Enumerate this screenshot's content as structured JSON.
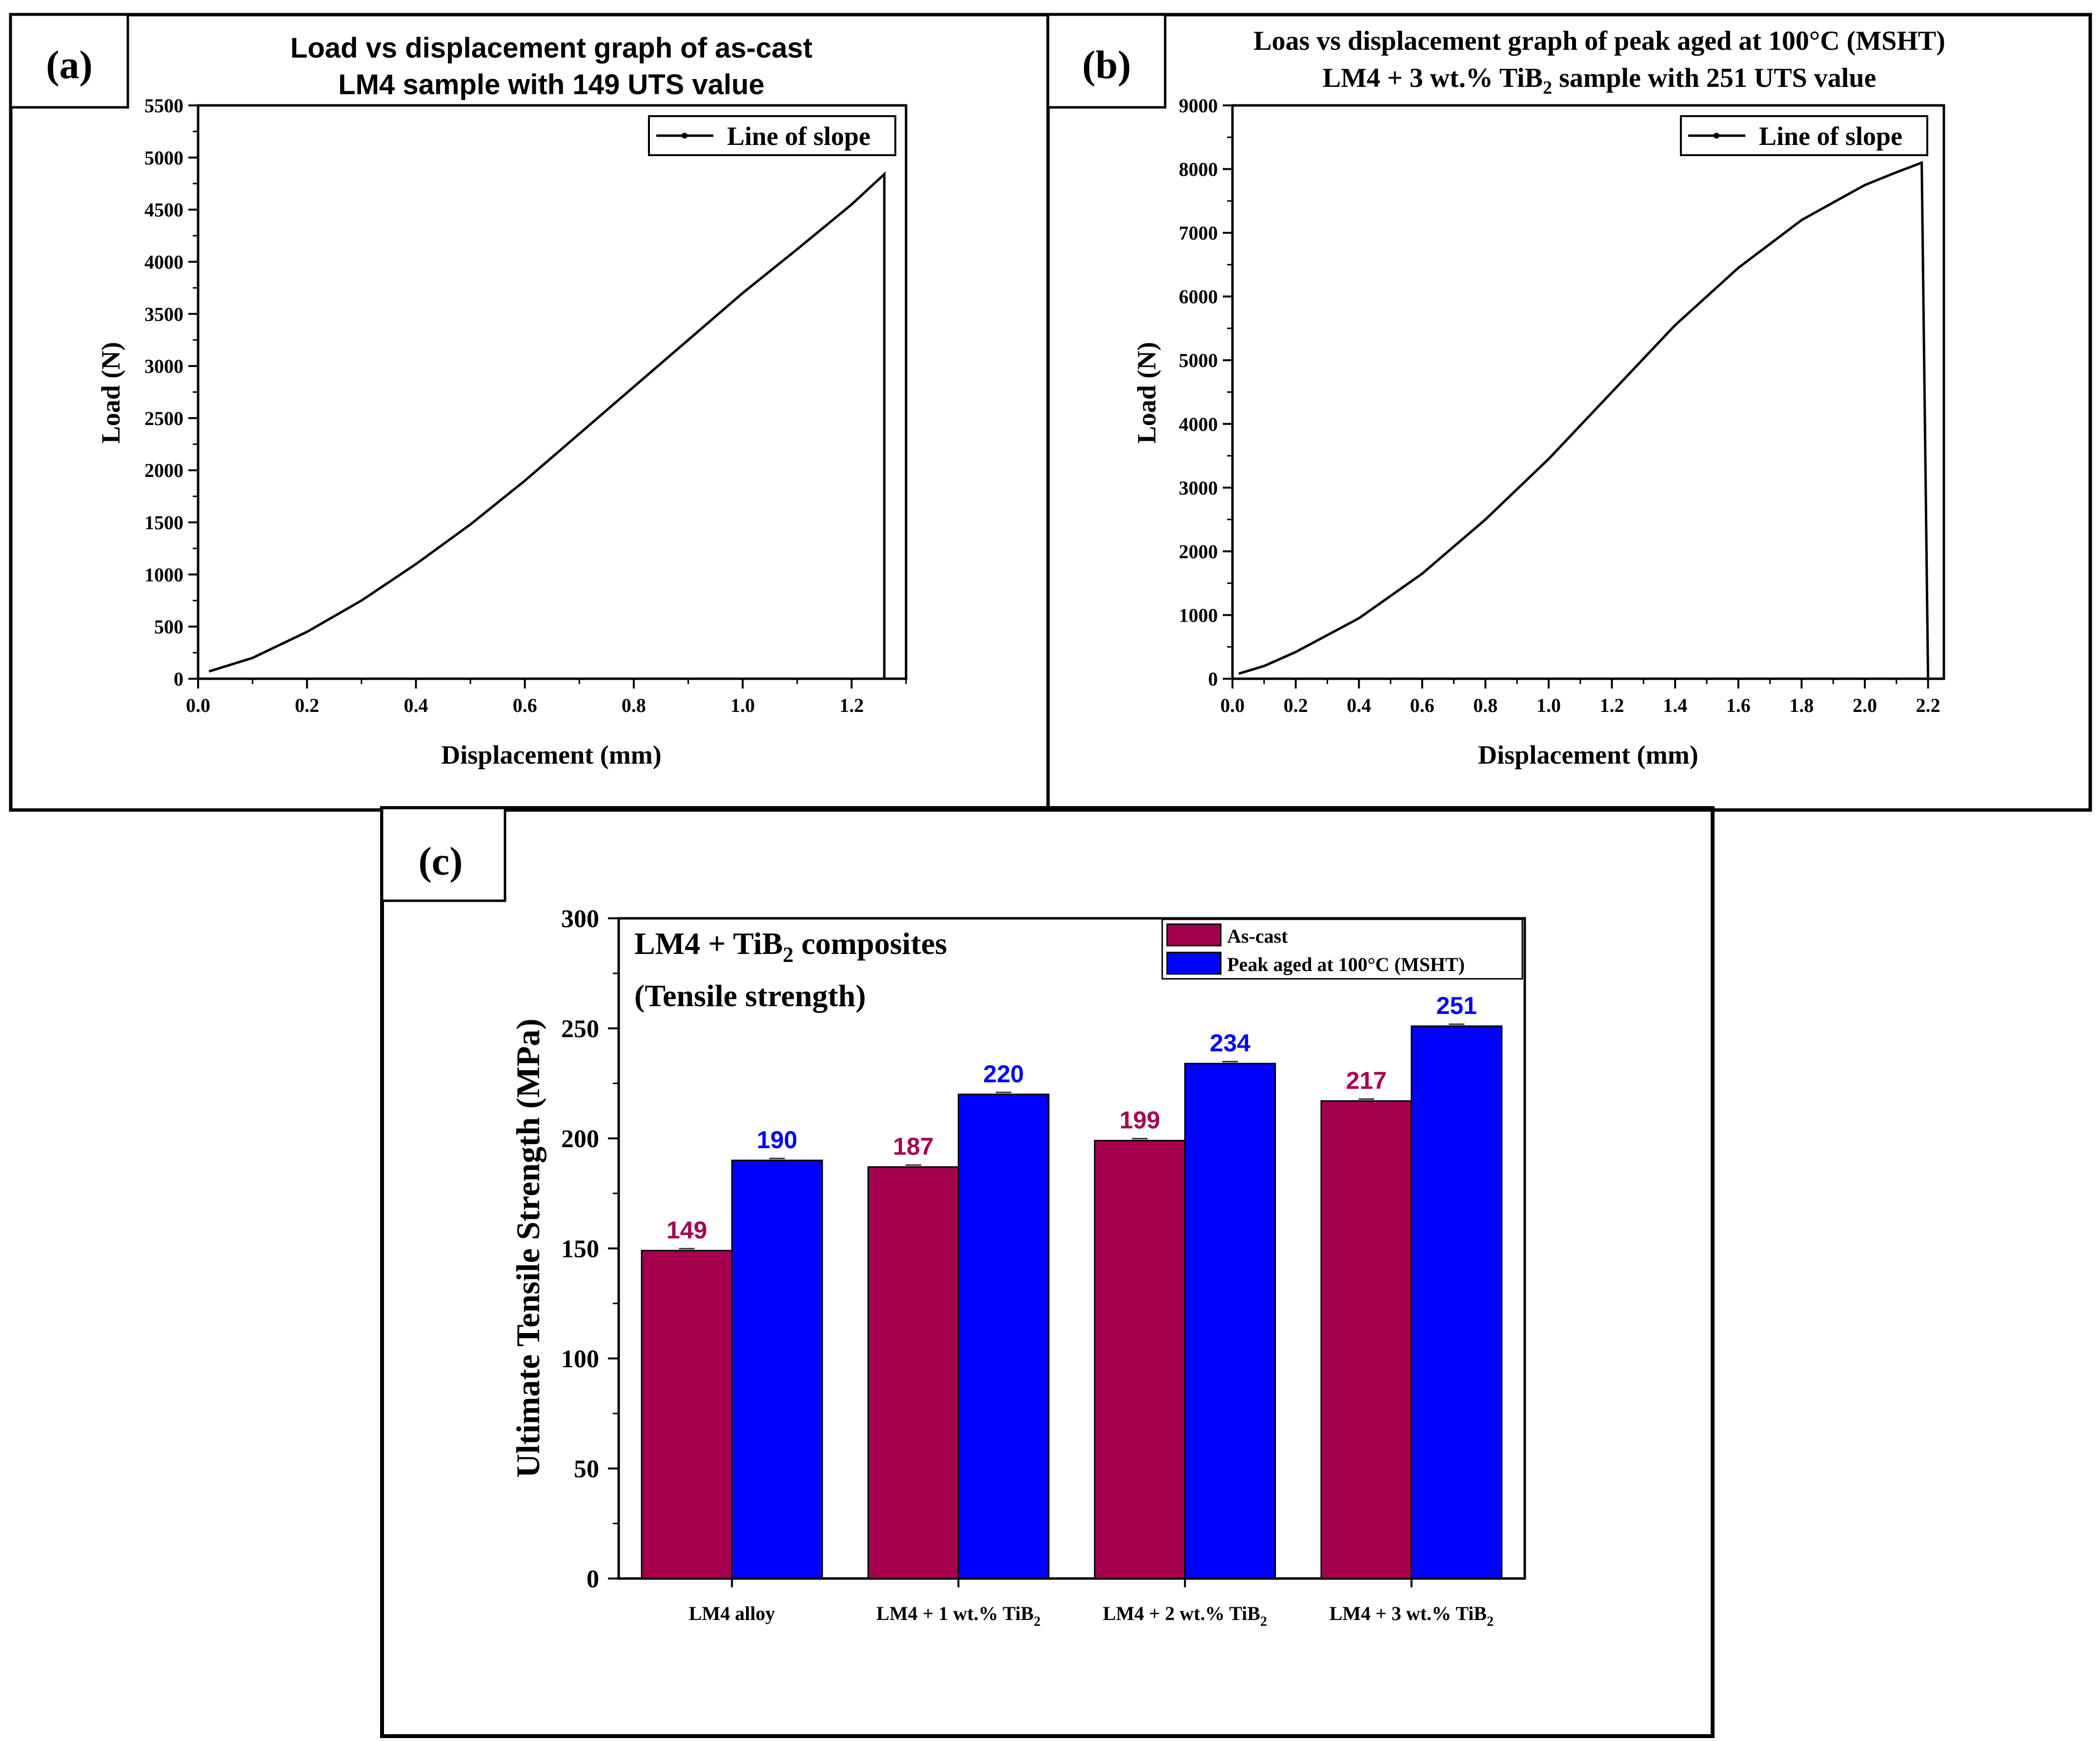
{
  "colors": {
    "as_cast": "#A50050",
    "peak_aged": "#0000FF",
    "line": "#000000"
  },
  "chart_data": [
    {
      "panel": "(a)",
      "type": "line",
      "title_lines": [
        "Load vs displacement graph of as-cast",
        "LM4 sample with 149 UTS value"
      ],
      "xlabel": "Displacement (mm)",
      "ylabel": "Load (N)",
      "xlim": [
        0,
        1.3
      ],
      "ylim": [
        0,
        5500
      ],
      "xticks": [
        0.0,
        0.2,
        0.4,
        0.6,
        0.8,
        1.0,
        1.2
      ],
      "xtick_labels": [
        "0.0",
        "0.2",
        "0.4",
        "0.6",
        "0.8",
        "1.0",
        "1.2"
      ],
      "yticks": [
        0,
        500,
        1000,
        1500,
        2000,
        2500,
        3000,
        3500,
        4000,
        4500,
        5000,
        5500
      ],
      "ytick_labels": [
        "0",
        "500",
        "1000",
        "1500",
        "2000",
        "2500",
        "3000",
        "3500",
        "4000",
        "4500",
        "5000",
        "5500"
      ],
      "legend": [
        "Line of slope"
      ],
      "series": [
        {
          "name": "Line of slope",
          "x": [
            0.02,
            0.1,
            0.2,
            0.3,
            0.4,
            0.5,
            0.6,
            0.7,
            0.8,
            0.9,
            1.0,
            1.1,
            1.2,
            1.26,
            1.26
          ],
          "y": [
            70,
            200,
            450,
            750,
            1100,
            1480,
            1900,
            2350,
            2800,
            3250,
            3700,
            4120,
            4550,
            4840,
            0
          ]
        }
      ]
    },
    {
      "panel": "(b)",
      "type": "line",
      "title_lines": [
        "Loas vs displacement graph of peak aged at 100°C (MSHT)",
        "LM4 + 3 wt.% TiB",
        "2",
        " sample with 251 UTS value"
      ],
      "xlabel": "Displacement (mm)",
      "ylabel": "Load (N)",
      "xlim": [
        0,
        2.25
      ],
      "ylim": [
        0,
        9000
      ],
      "xticks": [
        0.0,
        0.2,
        0.4,
        0.6,
        0.8,
        1.0,
        1.2,
        1.4,
        1.6,
        1.8,
        2.0,
        2.2
      ],
      "xtick_labels": [
        "0.0",
        "0.2",
        "0.4",
        "0.6",
        "0.8",
        "1.0",
        "1.2",
        "1.4",
        "1.6",
        "1.8",
        "2.0",
        "2.2"
      ],
      "yticks": [
        0,
        1000,
        2000,
        3000,
        4000,
        5000,
        6000,
        7000,
        8000,
        9000
      ],
      "ytick_labels": [
        "0",
        "1000",
        "2000",
        "3000",
        "4000",
        "5000",
        "6000",
        "7000",
        "8000",
        "9000"
      ],
      "legend": [
        "Line of slope"
      ],
      "series": [
        {
          "name": "Line of slope",
          "x": [
            0.02,
            0.1,
            0.2,
            0.4,
            0.6,
            0.8,
            1.0,
            1.2,
            1.4,
            1.6,
            1.8,
            2.0,
            2.1,
            2.18,
            2.2
          ],
          "y": [
            80,
            200,
            420,
            950,
            1650,
            2500,
            3450,
            4500,
            5550,
            6450,
            7200,
            7750,
            7950,
            8100,
            0
          ]
        }
      ]
    },
    {
      "panel": "(c)",
      "type": "bar",
      "title_lines": [
        "LM4 + TiB",
        "2",
        " composites",
        "(Tensile strength)"
      ],
      "ylabel": "Ultimate Tensile Strength (MPa)",
      "ylim": [
        0,
        300
      ],
      "yticks": [
        0,
        50,
        100,
        150,
        200,
        250,
        300
      ],
      "ytick_labels": [
        "0",
        "50",
        "100",
        "150",
        "200",
        "250",
        "300"
      ],
      "categories": [
        {
          "main": "LM4 alloy",
          "sub": ""
        },
        {
          "main": "LM4 + 1 wt.% TiB",
          "sub": "2"
        },
        {
          "main": "LM4 + 2 wt.% TiB",
          "sub": "2"
        },
        {
          "main": "LM4 + 3 wt.% TiB",
          "sub": "2"
        }
      ],
      "series": [
        {
          "name": "As-cast",
          "values": [
            149,
            187,
            199,
            217
          ],
          "labels": [
            "149",
            "187",
            "199",
            "217"
          ]
        },
        {
          "name": "Peak aged at 100°C (MSHT)",
          "values": [
            190,
            220,
            234,
            251
          ],
          "labels": [
            "190",
            "220",
            "234",
            "251"
          ]
        }
      ],
      "legend": [
        "As-cast",
        "Peak aged at 100°C (MSHT)"
      ]
    }
  ]
}
